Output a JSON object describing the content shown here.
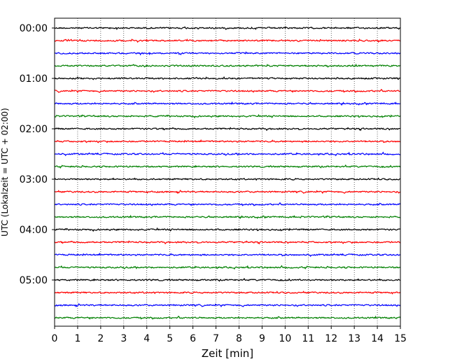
{
  "chart_data": {
    "type": "line",
    "title": "",
    "xlabel": "Zeit  [min]",
    "ylabel": "UTC (Lokalzeit = UTC + 02:00)",
    "xlim": [
      0,
      15
    ],
    "x_ticks": [
      "0",
      "1",
      "2",
      "3",
      "4",
      "5",
      "6",
      "7",
      "8",
      "9",
      "10",
      "11",
      "12",
      "13",
      "14",
      "15"
    ],
    "y_ticks": [
      "00:00",
      "01:00",
      "02:00",
      "03:00",
      "04:00",
      "05:00"
    ],
    "grid": "vertical dotted at each minute",
    "trace_colors": [
      "#000000",
      "#ff0000",
      "#0000ff",
      "#008000"
    ],
    "rows_per_hour": 4,
    "row_start_labels": [
      "00:00",
      "00:15",
      "00:30",
      "00:45",
      "01:00",
      "01:15",
      "01:30",
      "01:45",
      "02:00",
      "02:15",
      "02:30",
      "02:45",
      "03:00",
      "03:15",
      "03:30",
      "03:45",
      "04:00",
      "04:15",
      "04:30",
      "04:45",
      "05:00",
      "05:15",
      "05:30",
      "05:45"
    ]
  }
}
